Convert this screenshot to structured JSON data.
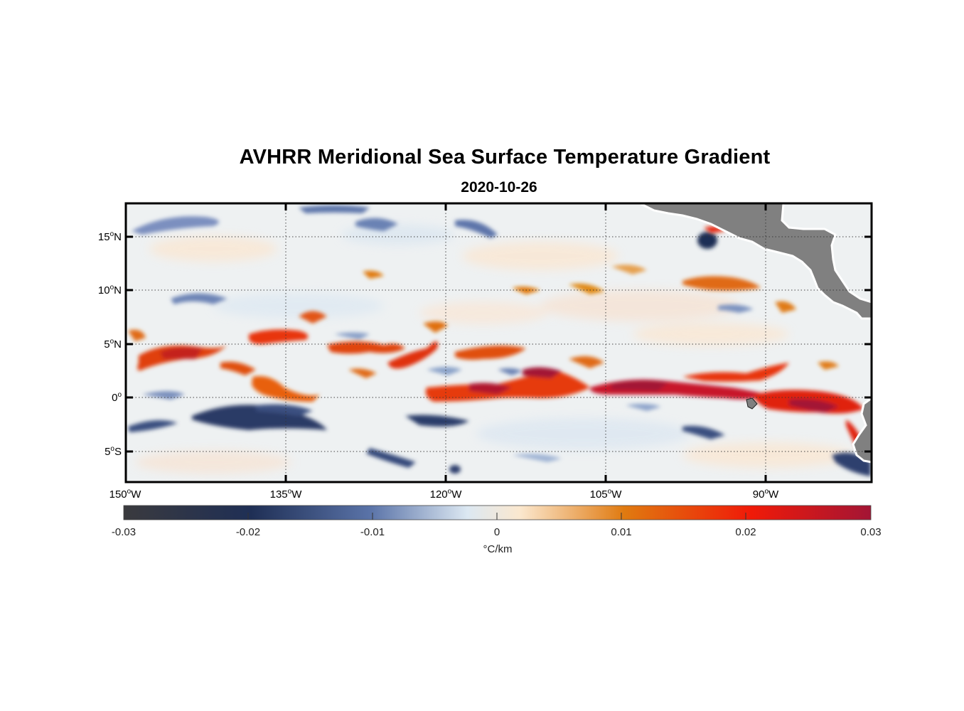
{
  "title": "AVHRR Meridional Sea Surface Temperature Gradient",
  "subtitle": "2020-10-26",
  "map": {
    "lon_range": [
      -150,
      -80
    ],
    "lat_range": [
      -8,
      18
    ],
    "lat_labels": [
      {
        "deg": "15",
        "hemi": "N"
      },
      {
        "deg": "10",
        "hemi": "N"
      },
      {
        "deg": "5",
        "hemi": "N"
      },
      {
        "deg": "0",
        "hemi": ""
      },
      {
        "deg": "5",
        "hemi": "S"
      }
    ],
    "lon_labels": [
      {
        "deg": "150",
        "hemi": "W"
      },
      {
        "deg": "135",
        "hemi": "W"
      },
      {
        "deg": "120",
        "hemi": "W"
      },
      {
        "deg": "105",
        "hemi": "W"
      },
      {
        "deg": "90",
        "hemi": "W"
      }
    ],
    "land_color": "#808080"
  },
  "colorbar": {
    "ticks": [
      "-0.03",
      "-0.02",
      "-0.01",
      "0",
      "0.01",
      "0.02",
      "0.03"
    ],
    "unit": "°C/km",
    "stops": [
      "#3a3a3e",
      "#1f2f55",
      "#5a73a8",
      "#dce8f2",
      "#fbe8cf",
      "#e07a10",
      "#f01a08",
      "#a31535"
    ]
  }
}
